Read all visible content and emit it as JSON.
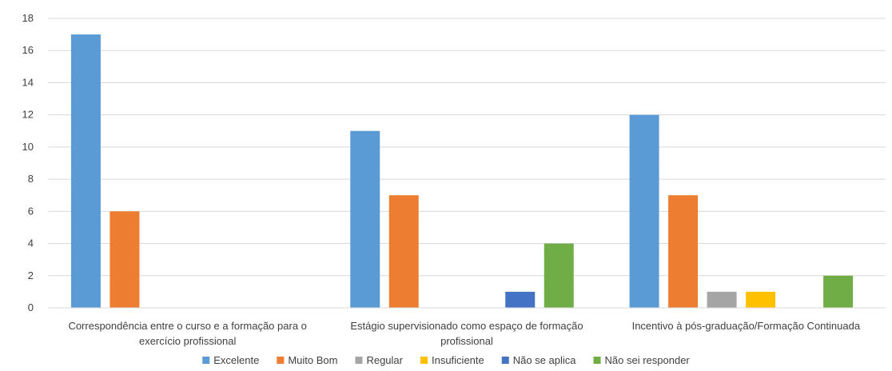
{
  "chart_data": {
    "type": "bar",
    "categories": [
      [
        "Correspondência entre o curso e a formação para o",
        "exercício profissional"
      ],
      [
        "Estágio supervisionado como espaço de formação",
        "profissional"
      ],
      [
        "Incentivo à pós-graduação/Formação Continuada"
      ]
    ],
    "series": [
      {
        "name": "Excelente",
        "color": "#5B9BD5",
        "values": [
          17,
          11,
          12
        ]
      },
      {
        "name": "Muito Bom",
        "color": "#ED7D31",
        "values": [
          6,
          7,
          7
        ]
      },
      {
        "name": "Regular",
        "color": "#A5A5A5",
        "values": [
          0,
          0,
          1
        ]
      },
      {
        "name": "Insuficiente",
        "color": "#FFC000",
        "values": [
          0,
          0,
          1
        ]
      },
      {
        "name": "Não se aplica",
        "color": "#4472C4",
        "values": [
          0,
          1,
          0
        ]
      },
      {
        "name": "Não sei responder",
        "color": "#70AD47",
        "values": [
          0,
          4,
          2
        ]
      }
    ],
    "ylim": [
      0,
      18
    ],
    "yticks": [
      0,
      2,
      4,
      6,
      8,
      10,
      12,
      14,
      16,
      18
    ],
    "grid": true,
    "legend_position": "bottom",
    "title": "",
    "xlabel": "",
    "ylabel": ""
  }
}
